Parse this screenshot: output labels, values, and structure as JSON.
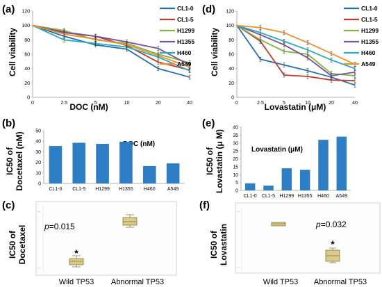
{
  "colors": {
    "CL1-0": "#1f6fb4",
    "CL1-5": "#c0392b",
    "H1299": "#7fb53e",
    "H1355": "#7b4f9d",
    "H460": "#27aac4",
    "A549": "#f28e2b",
    "bar": "#2e7ec6",
    "box_fill": "#d8cc8a",
    "box_edge": "#8a7a3a"
  },
  "panels": {
    "a": {
      "label": "(a)",
      "ylabel": "Cell viability",
      "xlabel": "DOC  (nM)"
    },
    "b": {
      "label": "(b)",
      "ylabel": "IC50 of Docetaxel (nM)",
      "ylabel_line1": "IC50 of",
      "ylabel_line2": "Docetaxel (nM)",
      "note": "DOC  (nM)"
    },
    "c": {
      "label": "(c)",
      "ylabel_line1": "IC50 of",
      "ylabel_line2": "Docetaxel",
      "pvalue": "p=0.015",
      "p_italic": "p",
      "p_rest": "=0.015",
      "star": "*",
      "groups": [
        "Wild TP53",
        "Abnormal TP53"
      ]
    },
    "d": {
      "label": "(d)",
      "ylabel": "Cell viability",
      "xlabel": "Lovastatin  (μM)"
    },
    "e": {
      "label": "(e)",
      "ylabel_line1": "IC50 of",
      "ylabel_line2": "Lovastatin (μ M)",
      "note": "Lovastatin  (μM)"
    },
    "f": {
      "label": "(f)",
      "ylabel_line1": "IC50 of",
      "ylabel_line2": "Lovastatin",
      "pvalue": "p=0.032",
      "p_italic": "p",
      "p_rest": "=0.032",
      "star": "*",
      "groups": [
        "Wild TP53",
        "Abnormal TP53"
      ]
    }
  },
  "chart_data": [
    {
      "id": "a",
      "type": "line",
      "xlabel": "DOC  (nM)",
      "ylabel": "Cell viability",
      "x": [
        "0",
        "2.5",
        "5",
        "10",
        "20",
        "40"
      ],
      "ylim": [
        0,
        120
      ],
      "yticks": [
        0,
        20,
        40,
        60,
        80,
        100,
        120
      ],
      "legend": "right",
      "series": [
        {
          "name": "CL1-0",
          "values": [
            100,
            85,
            73,
            67,
            40,
            28
          ]
        },
        {
          "name": "CL1-5",
          "values": [
            100,
            91,
            85,
            72,
            49,
            38
          ]
        },
        {
          "name": "H1299",
          "values": [
            100,
            93,
            80,
            75,
            60,
            48
          ]
        },
        {
          "name": "H1355",
          "values": [
            100,
            90,
            85,
            77,
            68,
            45
          ]
        },
        {
          "name": "H460",
          "values": [
            100,
            80,
            75,
            70,
            56,
            37
          ]
        },
        {
          "name": "A549",
          "values": [
            100,
            88,
            81,
            73,
            58,
            42
          ]
        }
      ]
    },
    {
      "id": "d",
      "type": "line",
      "xlabel": "Lovastatin  (μM)",
      "ylabel": "Cell viability",
      "x": [
        "0",
        "2.5",
        "5",
        "10",
        "20",
        "40"
      ],
      "ylim": [
        0,
        120
      ],
      "yticks": [
        0,
        20,
        40,
        60,
        80,
        100,
        120
      ],
      "legend": "right",
      "series": [
        {
          "name": "CL1-0",
          "values": [
            100,
            53,
            45,
            37,
            28,
            17
          ]
        },
        {
          "name": "CL1-5",
          "values": [
            100,
            78,
            31,
            29,
            24,
            23
          ]
        },
        {
          "name": "H1299",
          "values": [
            100,
            80,
            64,
            60,
            33,
            30
          ]
        },
        {
          "name": "H1355",
          "values": [
            100,
            87,
            73,
            55,
            30,
            35
          ]
        },
        {
          "name": "H460",
          "values": [
            100,
            90,
            78,
            66,
            52,
            40
          ]
        },
        {
          "name": "A549",
          "values": [
            100,
            97,
            90,
            76,
            61,
            46
          ]
        }
      ]
    },
    {
      "id": "b",
      "type": "bar",
      "ylabel": "IC50 of Docetaxel (nM)",
      "categories": [
        "CL1-0",
        "CL1-5",
        "H1299",
        "H1355",
        "H460",
        "A549"
      ],
      "values": [
        35.5,
        38.5,
        37.5,
        39.5,
        16.5,
        19
      ],
      "ylim": [
        0,
        50
      ],
      "yticks": [
        0,
        10,
        20,
        30,
        40,
        50
      ]
    },
    {
      "id": "e",
      "type": "bar",
      "ylabel": "IC50 of Lovastatin (μ M)",
      "categories": [
        "CL1-0",
        "CL1-5",
        "H1299",
        "H1355",
        "H460",
        "A549"
      ],
      "values": [
        4.5,
        3,
        14,
        13,
        32,
        34
      ],
      "ylim": [
        0,
        40
      ],
      "yticks": [
        0,
        5,
        10,
        15,
        20,
        25,
        30,
        35,
        40
      ]
    }
  ]
}
